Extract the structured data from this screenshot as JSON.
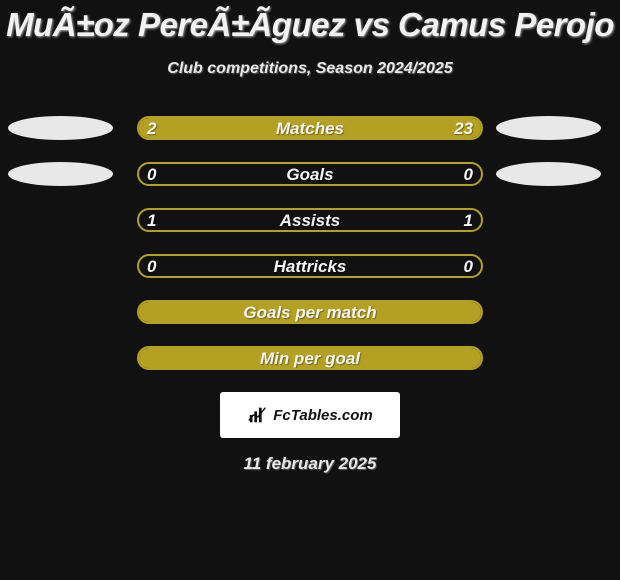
{
  "colors": {
    "page_bg": "#111111",
    "title": "#f2f2f2",
    "subtitle": "#e8e8e8",
    "bar_border": "#b4a022",
    "fill_left": "#b4a022",
    "fill_right": "#b4a022",
    "bar_label": "#f5f5f5",
    "value_text": "#f5f5f5",
    "ellipse_left": "#e8e8e8",
    "ellipse_right": "#e8e8e8",
    "logo_bg": "#ffffff",
    "logo_text": "#111111",
    "date": "#e8e8e8"
  },
  "title": "MuÃ±oz PereÃ±Ãguez vs Camus Perojo",
  "subtitle": "Club competitions, Season 2024/2025",
  "rows": [
    {
      "label": "Matches",
      "left_val": "2",
      "right_val": "23",
      "left_fill_pct": 18,
      "right_fill_pct": 82,
      "show_values": true,
      "show_ellipses": true
    },
    {
      "label": "Goals",
      "left_val": "0",
      "right_val": "0",
      "left_fill_pct": 0,
      "right_fill_pct": 0,
      "show_values": true,
      "show_ellipses": true
    },
    {
      "label": "Assists",
      "left_val": "1",
      "right_val": "1",
      "left_fill_pct": 0,
      "right_fill_pct": 0,
      "show_values": true,
      "show_ellipses": false
    },
    {
      "label": "Hattricks",
      "left_val": "0",
      "right_val": "0",
      "left_fill_pct": 0,
      "right_fill_pct": 0,
      "show_values": true,
      "show_ellipses": false
    },
    {
      "label": "Goals per match",
      "left_val": "",
      "right_val": "",
      "left_fill_pct": 100,
      "right_fill_pct": 0,
      "show_values": false,
      "show_ellipses": false
    },
    {
      "label": "Min per goal",
      "left_val": "",
      "right_val": "",
      "left_fill_pct": 100,
      "right_fill_pct": 0,
      "show_values": false,
      "show_ellipses": false
    }
  ],
  "logo": {
    "text": "FcTables.com"
  },
  "date": "11 february 2025"
}
